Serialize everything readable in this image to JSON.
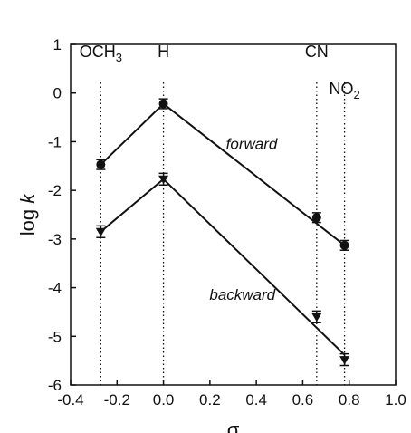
{
  "chart_data": {
    "type": "line",
    "xlabel": "σ",
    "ylabel_main": "log ",
    "ylabel_italic": "k",
    "xlim": [
      -0.4,
      1.0
    ],
    "ylim": [
      -6,
      1
    ],
    "xticks": [
      -0.4,
      -0.2,
      0.0,
      0.2,
      0.4,
      0.6,
      0.8,
      1.0
    ],
    "xtick_labels": [
      "-0.4",
      "-0.2",
      "0.0",
      "0.2",
      "0.4",
      "0.6",
      "0.8",
      "1.0"
    ],
    "yticks": [
      1,
      0,
      -1,
      -2,
      -3,
      -4,
      -5,
      -6
    ],
    "ytick_labels": [
      "1",
      "0",
      "-1",
      "-2",
      "-3",
      "-4",
      "-5",
      "-6"
    ],
    "grid": false,
    "legend": "none",
    "reference_lines": [
      {
        "x": -0.27,
        "label_base": "OCH",
        "label_sub": "3"
      },
      {
        "x": 0.0,
        "label_base": "H",
        "label_sub": ""
      },
      {
        "x": 0.66,
        "label_base": "CN",
        "label_sub": ""
      },
      {
        "x": 0.78,
        "label_base": "NO",
        "label_sub": "2"
      }
    ],
    "series": [
      {
        "name": "forward",
        "marker": "circle",
        "x": [
          -0.27,
          0.0,
          0.66,
          0.78
        ],
        "y": [
          -1.47,
          -0.22,
          -2.56,
          -3.13
        ],
        "err": [
          0.1,
          0.1,
          0.1,
          0.1
        ],
        "fit_segments": [
          {
            "x": [
              -0.27,
              0.0
            ],
            "y": [
              -1.47,
              -0.22
            ]
          },
          {
            "x": [
              0.0,
              0.78
            ],
            "y": [
              -0.22,
              -3.13
            ]
          }
        ]
      },
      {
        "name": "backward",
        "marker": "triangle-down",
        "x": [
          -0.27,
          0.0,
          0.66,
          0.78
        ],
        "y": [
          -2.85,
          -1.77,
          -4.6,
          -5.48
        ],
        "err": [
          0.12,
          0.12,
          0.12,
          0.12
        ],
        "fit_segments": [
          {
            "x": [
              -0.27,
              0.0
            ],
            "y": [
              -2.85,
              -1.77
            ]
          },
          {
            "x": [
              0.0,
              0.78
            ],
            "y": [
              -1.77,
              -5.38
            ]
          }
        ]
      }
    ],
    "series_label_positions": [
      {
        "series": "forward",
        "x": 0.38,
        "y": -1.15
      },
      {
        "series": "backward",
        "x": 0.34,
        "y": -4.25
      }
    ]
  }
}
